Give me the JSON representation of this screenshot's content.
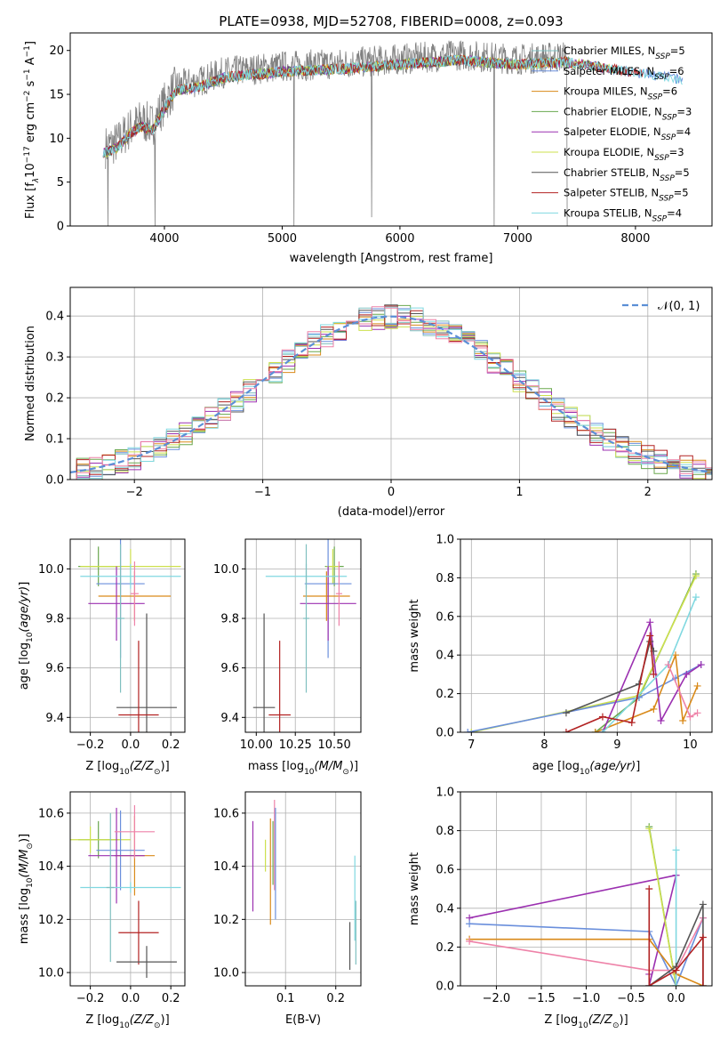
{
  "colors": {
    "chabrier_miles": "#7fbfbf",
    "salpeter_miles": "#6a8fdc",
    "kroupa_miles": "#d98a1a",
    "chabrier_elodie": "#6aa84f",
    "salpeter_elodie": "#9b30b0",
    "kroupa_elodie": "#cde04e",
    "chabrier_stelib": "#555555",
    "salpeter_stelib": "#b22222",
    "kroupa_stelib": "#80d8e0",
    "pink": "#ee82a8",
    "gaussian": "#5b8fd6",
    "spectrum_gray": "#808080"
  },
  "chart_data": [
    {
      "id": "spectrum",
      "type": "line",
      "title": "PLATE=0938, MJD=52708, FIBERID=0008, z=0.093",
      "xlabel": "wavelength [Angstrom, rest frame]",
      "ylabel": "Flux [f",
      "xlim": [
        3200,
        8650
      ],
      "ylim": [
        0,
        22
      ],
      "xticks": [
        "4000",
        "5000",
        "6000",
        "7000",
        "8000"
      ],
      "yticks": [
        "0",
        "5",
        "10",
        "15",
        "20"
      ],
      "legend_position": "right",
      "legend": [
        {
          "name": "Chabrier MILES, N",
          "n": "=5",
          "color_key": "chabrier_miles"
        },
        {
          "name": "Salpeter MILES, N",
          "n": "=6",
          "color_key": "salpeter_miles"
        },
        {
          "name": "Kroupa MILES, N",
          "n": "=6",
          "color_key": "kroupa_miles"
        },
        {
          "name": "Chabrier ELODIE, N",
          "n": "=3",
          "color_key": "chabrier_elodie"
        },
        {
          "name": "Salpeter ELODIE, N",
          "n": "=4",
          "color_key": "salpeter_elodie"
        },
        {
          "name": "Kroupa ELODIE, N",
          "n": "=3",
          "color_key": "kroupa_elodie"
        },
        {
          "name": "Chabrier STELIB, N",
          "n": "=5",
          "color_key": "chabrier_stelib"
        },
        {
          "name": "Salpeter STELIB, N",
          "n": "=5",
          "color_key": "salpeter_stelib"
        },
        {
          "name": "Kroupa STELIB, N",
          "n": "=4",
          "color_key": "kroupa_stelib"
        }
      ],
      "continuum": {
        "x": [
          3500,
          3600,
          3700,
          3800,
          3900,
          4000,
          4100,
          4300,
          4500,
          5000,
          5500,
          6000,
          6500,
          7000,
          7400
        ],
        "y": [
          9,
          9.5,
          11,
          12,
          11.5,
          14,
          16,
          16.5,
          17.5,
          18.2,
          18.5,
          19,
          19.5,
          19,
          19.3
        ]
      },
      "absorption_spikes": [
        {
          "x": 3520,
          "depth": 0
        },
        {
          "x": 3920,
          "depth": 0
        },
        {
          "x": 5100,
          "depth": 0
        },
        {
          "x": 5760,
          "depth": 1
        },
        {
          "x": 6800,
          "depth": 0
        },
        {
          "x": 7420,
          "depth": 0
        }
      ]
    },
    {
      "id": "residual_hist",
      "type": "line",
      "xlabel": "(data-model)/error",
      "ylabel": "Normed distribution",
      "xlim": [
        -2.5,
        2.5
      ],
      "ylim": [
        0,
        0.47
      ],
      "xticks": [
        "−2",
        "−1",
        "0",
        "1",
        "2"
      ],
      "yticks": [
        "0.0",
        "0.1",
        "0.2",
        "0.3",
        "0.4"
      ],
      "legend": [
        {
          "name": "𝒩(0, 1)",
          "color_key": "gaussian"
        }
      ],
      "legend_position": "top-right",
      "bin_width": 0.1,
      "gaussian_mu": 0,
      "gaussian_sigma": 1
    },
    {
      "id": "age_vs_Z",
      "type": "scatter",
      "xlabel": "Z [log",
      "ylabel": "age  [log",
      "xlim": [
        -0.3,
        0.27
      ],
      "ylim": [
        9.34,
        10.12
      ],
      "xticks": [
        "−0.2",
        "0.0",
        "0.2"
      ],
      "yticks": [
        "9.4",
        "9.6",
        "9.8",
        "10.0"
      ],
      "points": [
        {
          "x": -0.16,
          "y": 10.01,
          "xerr": 0.1,
          "yerr": 0.08,
          "color_key": "chabrier_elodie"
        },
        {
          "x": 0.0,
          "y": 10.01,
          "xerr": 0.25,
          "yerr": 0.07,
          "color_key": "kroupa_elodie"
        },
        {
          "x": -0.05,
          "y": 9.94,
          "xerr": 0.12,
          "yerr": 0.3,
          "color_key": "salpeter_miles"
        },
        {
          "x": 0.02,
          "y": 9.89,
          "xerr": 0.18,
          "yerr": 0.1,
          "color_key": "kroupa_miles"
        },
        {
          "x": -0.07,
          "y": 9.86,
          "xerr": 0.14,
          "yerr": 0.15,
          "color_key": "salpeter_elodie"
        },
        {
          "x": 0.0,
          "y": 9.97,
          "xerr": 0.25,
          "yerr": 0.05,
          "color_key": "kroupa_stelib"
        },
        {
          "x": -0.05,
          "y": 9.8,
          "xerr": 0.02,
          "yerr": 0.3,
          "color_key": "chabrier_miles"
        },
        {
          "x": 0.08,
          "y": 9.44,
          "xerr": 0.15,
          "yerr": 0.38,
          "color_key": "chabrier_stelib"
        },
        {
          "x": 0.04,
          "y": 9.41,
          "xerr": 0.1,
          "yerr": 0.3,
          "color_key": "salpeter_stelib"
        },
        {
          "x": 0.02,
          "y": 9.9,
          "xerr": 0.02,
          "yerr": 0.13,
          "color_key": "pink"
        }
      ]
    },
    {
      "id": "age_vs_mass",
      "type": "scatter",
      "xlabel": "mass [log",
      "ylabel": "",
      "xlim": [
        9.93,
        10.67
      ],
      "ylim": [
        9.34,
        10.12
      ],
      "xticks": [
        "10.00",
        "10.25",
        "10.50"
      ],
      "yticks": [
        "9.4",
        "9.6",
        "9.8",
        "10.0"
      ],
      "points": [
        {
          "x": 10.5,
          "y": 10.01,
          "xerr": 0.06,
          "yerr": 0.08,
          "color_key": "chabrier_elodie"
        },
        {
          "x": 10.49,
          "y": 10.01,
          "xerr": 0.04,
          "yerr": 0.07,
          "color_key": "kroupa_elodie"
        },
        {
          "x": 10.46,
          "y": 9.94,
          "xerr": 0.15,
          "yerr": 0.3,
          "color_key": "salpeter_miles"
        },
        {
          "x": 10.45,
          "y": 9.89,
          "xerr": 0.15,
          "yerr": 0.1,
          "color_key": "kroupa_miles"
        },
        {
          "x": 10.46,
          "y": 9.86,
          "xerr": 0.18,
          "yerr": 0.15,
          "color_key": "salpeter_elodie"
        },
        {
          "x": 10.32,
          "y": 9.97,
          "xerr": 0.26,
          "yerr": 0.05,
          "color_key": "kroupa_stelib"
        },
        {
          "x": 10.32,
          "y": 9.8,
          "xerr": 0.02,
          "yerr": 0.3,
          "color_key": "chabrier_miles"
        },
        {
          "x": 10.05,
          "y": 9.44,
          "xerr": 0.07,
          "yerr": 0.38,
          "color_key": "chabrier_stelib"
        },
        {
          "x": 10.15,
          "y": 9.41,
          "xerr": 0.07,
          "yerr": 0.3,
          "color_key": "salpeter_stelib"
        },
        {
          "x": 10.53,
          "y": 9.9,
          "xerr": 0.02,
          "yerr": 0.13,
          "color_key": "pink"
        }
      ]
    },
    {
      "id": "mass_weight_vs_age",
      "type": "line",
      "xlabel": "age  [log",
      "ylabel": "mass weight",
      "xlim": [
        6.85,
        10.3
      ],
      "ylim": [
        0,
        1.0
      ],
      "xticks": [
        "7",
        "8",
        "9",
        "10"
      ],
      "yticks": [
        "0.0",
        "0.2",
        "0.4",
        "0.6",
        "0.8",
        "1.0"
      ],
      "series": [
        {
          "color_key": "chabrier_elodie",
          "x": [
            8.7,
            9.3,
            10.08
          ],
          "y": [
            0.0,
            0.18,
            0.82
          ]
        },
        {
          "color_key": "kroupa_elodie",
          "x": [
            7.0,
            9.3,
            10.08
          ],
          "y": [
            0.0,
            0.19,
            0.81
          ]
        },
        {
          "color_key": "salpeter_miles",
          "x": [
            6.95,
            9.3,
            9.8,
            10.15
          ],
          "y": [
            0.0,
            0.18,
            0.28,
            0.35
          ]
        },
        {
          "color_key": "kroupa_miles",
          "x": [
            8.7,
            9.5,
            9.8,
            9.9,
            10.1
          ],
          "y": [
            0.0,
            0.12,
            0.4,
            0.06,
            0.24
          ]
        },
        {
          "color_key": "salpeter_elodie",
          "x": [
            8.8,
            9.45,
            9.6,
            9.95,
            10.15
          ],
          "y": [
            0.0,
            0.57,
            0.06,
            0.3,
            0.35
          ]
        },
        {
          "color_key": "kroupa_stelib",
          "x": [
            8.8,
            9.7,
            10.08
          ],
          "y": [
            0.0,
            0.35,
            0.7
          ]
        },
        {
          "color_key": "chabrier_stelib",
          "x": [
            8.3,
            9.3,
            9.45,
            9.5
          ],
          "y": [
            0.1,
            0.25,
            0.47,
            0.42
          ]
        },
        {
          "color_key": "salpeter_stelib",
          "x": [
            8.3,
            8.8,
            9.2,
            9.45,
            9.5
          ],
          "y": [
            0.0,
            0.08,
            0.05,
            0.5,
            0.3
          ]
        },
        {
          "color_key": "pink",
          "x": [
            9.7,
            10.0,
            10.1
          ],
          "y": [
            0.35,
            0.08,
            0.1
          ]
        }
      ]
    },
    {
      "id": "mass_vs_Z",
      "type": "scatter",
      "xlabel": "Z [log",
      "ylabel": "mass [log",
      "xlim": [
        -0.3,
        0.27
      ],
      "ylim": [
        9.95,
        10.68
      ],
      "xticks": [
        "−0.2",
        "0.0",
        "0.2"
      ],
      "yticks": [
        "10.0",
        "10.2",
        "10.4",
        "10.6"
      ],
      "points": [
        {
          "x": -0.16,
          "y": 10.5,
          "xerr": 0.1,
          "yerr": 0.07,
          "color_key": "chabrier_elodie"
        },
        {
          "x": -0.2,
          "y": 10.5,
          "xerr": 0.2,
          "yerr": 0.05,
          "color_key": "kroupa_elodie"
        },
        {
          "x": -0.05,
          "y": 10.46,
          "xerr": 0.12,
          "yerr": 0.15,
          "color_key": "salpeter_miles"
        },
        {
          "x": 0.02,
          "y": 10.44,
          "xerr": 0.1,
          "yerr": 0.15,
          "color_key": "kroupa_miles"
        },
        {
          "x": -0.07,
          "y": 10.44,
          "xerr": 0.14,
          "yerr": 0.18,
          "color_key": "salpeter_elodie"
        },
        {
          "x": 0.0,
          "y": 10.32,
          "xerr": 0.25,
          "yerr": 0.02,
          "color_key": "kroupa_stelib"
        },
        {
          "x": -0.1,
          "y": 10.32,
          "xerr": 0.02,
          "yerr": 0.28,
          "color_key": "chabrier_miles"
        },
        {
          "x": 0.02,
          "y": 10.53,
          "xerr": 0.1,
          "yerr": 0.1,
          "color_key": "pink"
        },
        {
          "x": 0.04,
          "y": 10.15,
          "xerr": 0.1,
          "yerr": 0.12,
          "color_key": "salpeter_stelib"
        },
        {
          "x": 0.08,
          "y": 10.04,
          "xerr": 0.15,
          "yerr": 0.06,
          "color_key": "chabrier_stelib"
        }
      ]
    },
    {
      "id": "mass_vs_ebv",
      "type": "scatter",
      "xlabel": "E(B-V)",
      "ylabel": "",
      "xlim": [
        0.02,
        0.25
      ],
      "ylim": [
        9.95,
        10.68
      ],
      "xticks": [
        "0.1",
        "0.2"
      ],
      "yticks": [
        "10.0",
        "10.2",
        "10.4",
        "10.6"
      ],
      "points": [
        {
          "x": 0.035,
          "y": 10.4,
          "yerr": 0.17,
          "color_key": "salpeter_elodie"
        },
        {
          "x": 0.06,
          "y": 10.44,
          "yerr": 0.06,
          "color_key": "kroupa_elodie"
        },
        {
          "x": 0.07,
          "y": 10.38,
          "yerr": 0.2,
          "color_key": "kroupa_miles"
        },
        {
          "x": 0.075,
          "y": 10.45,
          "yerr": 0.12,
          "color_key": "chabrier_elodie"
        },
        {
          "x": 0.078,
          "y": 10.48,
          "yerr": 0.17,
          "color_key": "pink"
        },
        {
          "x": 0.08,
          "y": 10.41,
          "yerr": 0.21,
          "color_key": "salpeter_miles"
        },
        {
          "x": 0.228,
          "y": 10.1,
          "yerr": 0.09,
          "color_key": "chabrier_stelib"
        },
        {
          "x": 0.238,
          "y": 10.28,
          "yerr": 0.16,
          "color_key": "kroupa_stelib"
        },
        {
          "x": 0.24,
          "y": 10.15,
          "yerr": 0.12,
          "color_key": "chabrier_miles"
        }
      ]
    },
    {
      "id": "mass_weight_vs_Z",
      "type": "line",
      "xlabel": "Z [log",
      "ylabel": "mass weight",
      "xlim": [
        -2.4,
        0.4
      ],
      "ylim": [
        0,
        1.0
      ],
      "xticks": [
        "−2.0",
        "−1.5",
        "−1.0",
        "−0.5",
        "0.0"
      ],
      "yticks": [
        "0.0",
        "0.2",
        "0.4",
        "0.6",
        "0.8",
        "1.0"
      ],
      "series": [
        {
          "color_key": "salpeter_elodie",
          "x": [
            -2.3,
            0.0,
            -0.3,
            -0.3
          ],
          "y": [
            0.35,
            0.57,
            0.0,
            0.06
          ]
        },
        {
          "color_key": "salpeter_miles",
          "x": [
            -2.3,
            -0.3,
            0.0,
            0.3
          ],
          "y": [
            0.32,
            0.28,
            0.0,
            0.35
          ]
        },
        {
          "color_key": "kroupa_miles",
          "x": [
            -2.3,
            -0.3,
            0.0,
            0.3
          ],
          "y": [
            0.24,
            0.24,
            0.06,
            0.0
          ]
        },
        {
          "color_key": "pink",
          "x": [
            -2.3,
            -0.3,
            0.0,
            0.3
          ],
          "y": [
            0.23,
            0.08,
            0.08,
            0.35
          ]
        },
        {
          "color_key": "chabrier_elodie",
          "x": [
            -0.3,
            0.0
          ],
          "y": [
            0.82,
            0.0
          ]
        },
        {
          "color_key": "kroupa_elodie",
          "x": [
            -0.3,
            0.0
          ],
          "y": [
            0.81,
            0.0
          ]
        },
        {
          "color_key": "kroupa_stelib",
          "x": [
            0.0,
            0.0,
            -0.3
          ],
          "y": [
            0.7,
            0.0,
            0.0
          ]
        },
        {
          "color_key": "chabrier_stelib",
          "x": [
            -0.3,
            0.0,
            0.3,
            0.3
          ],
          "y": [
            0.0,
            0.1,
            0.42,
            0.0
          ]
        },
        {
          "color_key": "salpeter_stelib",
          "x": [
            -0.3,
            -0.3,
            0.0,
            0.3,
            0.3
          ],
          "y": [
            0.5,
            0.0,
            0.08,
            0.25,
            0.0
          ]
        }
      ]
    }
  ]
}
